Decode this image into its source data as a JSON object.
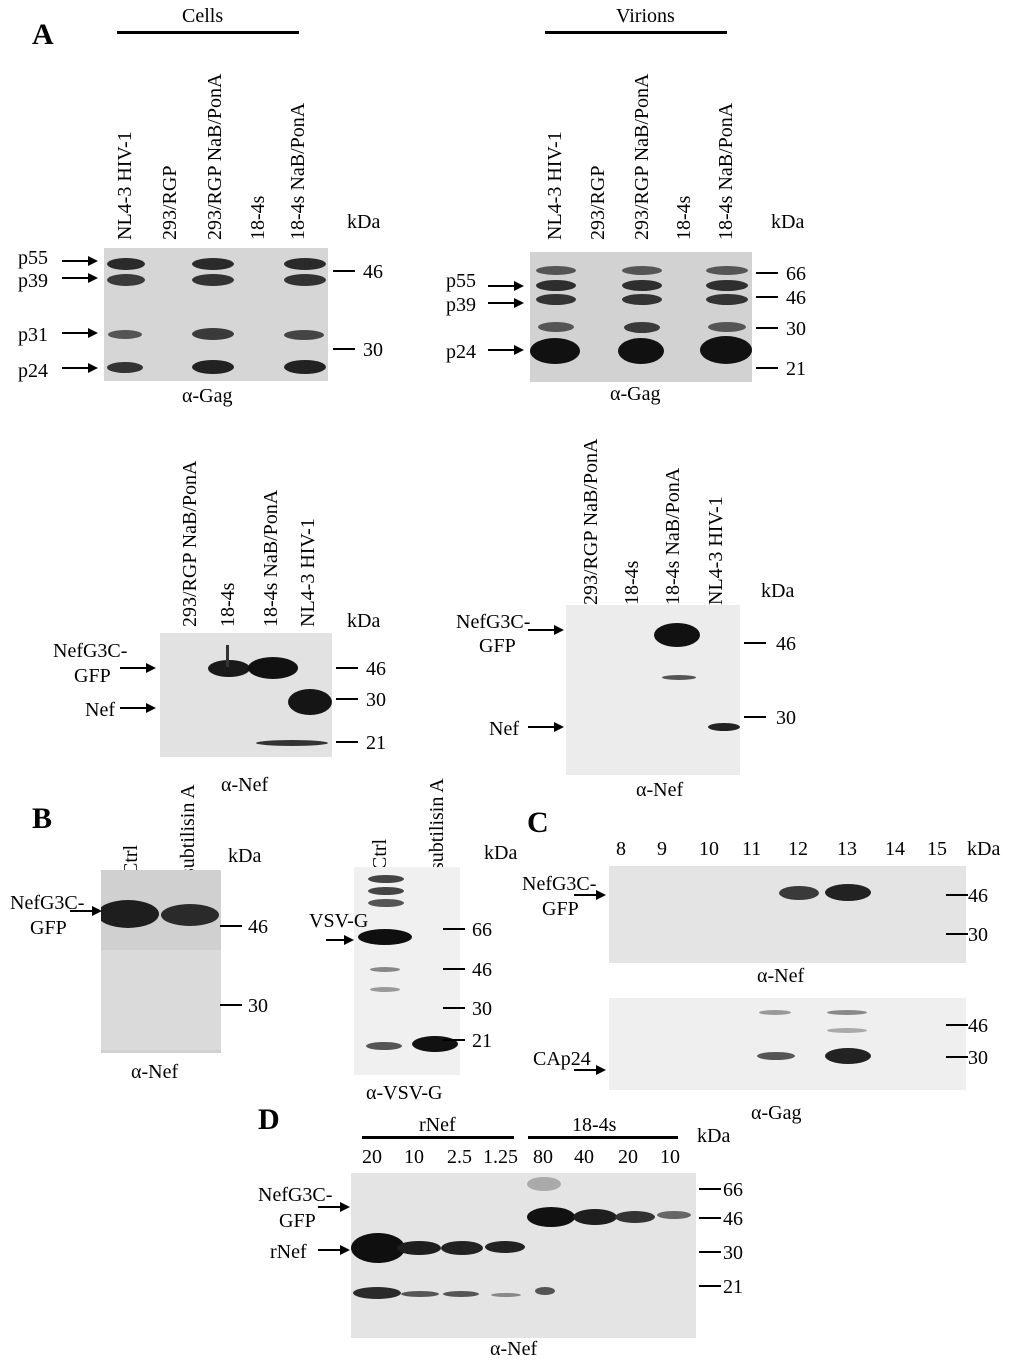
{
  "panel_labels": {
    "a": "A",
    "b": "B",
    "c": "C",
    "d": "D"
  },
  "section_headers": {
    "cells": "Cells",
    "virions": "Virions"
  },
  "kda": "kDa",
  "blot_a1": {
    "lanes": [
      "NL4-3 HIV-1",
      "293/RGP",
      "293/RGP NaB/PonA",
      "18-4s",
      "18-4s NaB/PonA"
    ],
    "left_labels": [
      "p55",
      "p39",
      "p31",
      "p24"
    ],
    "markers": [
      "46",
      "30"
    ],
    "antibody": "α-Gag"
  },
  "blot_a2": {
    "lanes": [
      "NL4-3 HIV-1",
      "293/RGP",
      "293/RGP NaB/PonA",
      "18-4s",
      "18-4s NaB/PonA"
    ],
    "left_labels": [
      "p55",
      "p39",
      "p24"
    ],
    "markers": [
      "66",
      "46",
      "30",
      "21"
    ],
    "antibody": "α-Gag"
  },
  "blot_a3": {
    "lanes": [
      "293/RGP NaB/PonA",
      "18-4s",
      "18-4s NaB/PonA",
      "NL4-3 HIV-1"
    ],
    "left_labels": [
      "NefG3C-",
      "GFP",
      "Nef"
    ],
    "markers": [
      "46",
      "30",
      "21"
    ],
    "antibody": "α-Nef"
  },
  "blot_a4": {
    "lanes": [
      "293/RGP NaB/PonA",
      "18-4s",
      "18-4s NaB/PonA",
      "NL4-3 HIV-1"
    ],
    "left_labels": [
      "NefG3C-",
      "GFP",
      "Nef"
    ],
    "markers": [
      "46",
      "30"
    ],
    "antibody": "α-Nef"
  },
  "blot_b1": {
    "lanes": [
      "Ctrl",
      "subtilisin A"
    ],
    "left_labels": [
      "NefG3C-",
      "GFP"
    ],
    "markers": [
      "46",
      "30"
    ],
    "antibody": "α-Nef"
  },
  "blot_b2": {
    "lanes": [
      "Ctrl",
      "subtilisin A"
    ],
    "left_labels": [
      "VSV-G"
    ],
    "markers": [
      "66",
      "46",
      "30",
      "21"
    ],
    "antibody": "α-VSV-G"
  },
  "blot_c": {
    "fractions": [
      "8",
      "9",
      "10",
      "11",
      "12",
      "13",
      "14",
      "15"
    ],
    "top_labels": [
      "NefG3C-",
      "GFP"
    ],
    "top_markers": [
      "46",
      "30"
    ],
    "top_antibody": "α-Nef",
    "bottom_label": "CAp24",
    "bottom_markers": [
      "46",
      "30"
    ],
    "bottom_antibody": "α-Gag"
  },
  "blot_d": {
    "group1": "rNef",
    "group2": "18-4s",
    "amounts": [
      "20",
      "10",
      "2.5",
      "1.25",
      "80",
      "40",
      "20",
      "10"
    ],
    "left_labels": [
      "NefG3C-",
      "GFP",
      "rNef"
    ],
    "markers": [
      "66",
      "46",
      "30",
      "21"
    ],
    "antibody": "α-Nef"
  }
}
